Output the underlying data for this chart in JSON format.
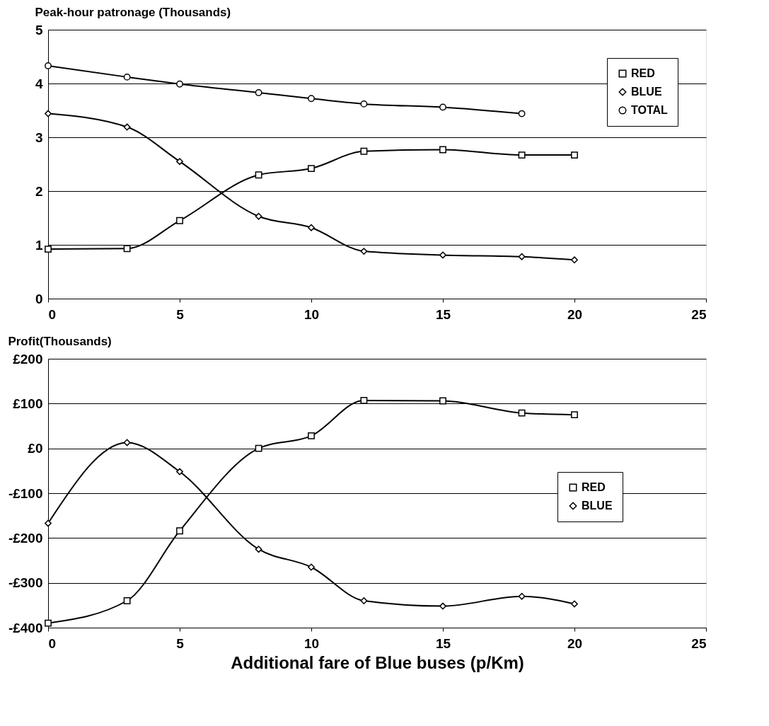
{
  "chart_data": [
    {
      "type": "line",
      "title": "Peak-hour patronage (Thousands)",
      "x": [
        0,
        3,
        5,
        8,
        10,
        12,
        15,
        18,
        20
      ],
      "series": [
        {
          "name": "RED",
          "color": "#000000",
          "marker": "square",
          "values": [
            0.92,
            0.93,
            1.45,
            2.3,
            2.42,
            2.74,
            2.77,
            2.67,
            2.67
          ]
        },
        {
          "name": "BLUE",
          "color": "#000000",
          "marker": "diamond",
          "values": [
            3.44,
            3.19,
            2.55,
            1.53,
            1.32,
            0.88,
            0.81,
            0.78,
            0.72
          ]
        },
        {
          "name": "TOTAL",
          "color": "#000000",
          "marker": "circle",
          "values": [
            4.33,
            4.12,
            3.99,
            3.83,
            3.72,
            3.62,
            3.56,
            3.44,
            null
          ]
        }
      ],
      "xlim": [
        0,
        25
      ],
      "xticks": [
        0,
        5,
        10,
        15,
        20,
        25
      ],
      "ylim": [
        0,
        5
      ],
      "yticks": [
        0,
        1,
        2,
        3,
        4,
        5
      ],
      "grid": "y",
      "legend": "top right",
      "line_style": "solid"
    },
    {
      "type": "line",
      "title": "Profit(Thousands)",
      "xlabel": "Additional fare of Blue buses (p/Km)",
      "x": [
        0,
        3,
        5,
        8,
        10,
        12,
        15,
        18,
        20
      ],
      "series": [
        {
          "name": "RED",
          "color": "#000000",
          "marker": "square",
          "values": [
            -390,
            -340,
            -184,
            0,
            28,
            107,
            106,
            79,
            75
          ]
        },
        {
          "name": "BLUE",
          "color": "#000000",
          "marker": "diamond",
          "values": [
            -167,
            13,
            -52,
            -225,
            -265,
            -340,
            -352,
            -330,
            -347
          ]
        }
      ],
      "xlim": [
        0,
        25
      ],
      "xticks": [
        0,
        5,
        10,
        15,
        20,
        25
      ],
      "ylim": [
        -400,
        200
      ],
      "yticks": [
        {
          "value": -400,
          "label": "-£400"
        },
        {
          "value": -300,
          "label": "-£300"
        },
        {
          "value": -200,
          "label": "-£200"
        },
        {
          "value": -100,
          "label": "-£100"
        },
        {
          "value": 0,
          "label": "£0"
        },
        {
          "value": 100,
          "label": "£100"
        },
        {
          "value": 200,
          "label": "£200"
        }
      ],
      "grid": "y",
      "legend": "right",
      "line_style": "solid"
    }
  ]
}
